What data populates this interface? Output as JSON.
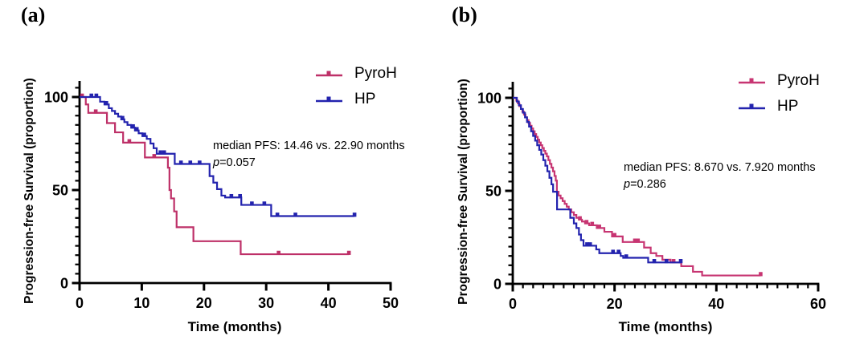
{
  "figure": {
    "background": "#ffffff"
  },
  "chart_data": [
    {
      "type": "line",
      "subtype": "kaplan-meier-step",
      "panel_label": "(a)",
      "xlabel": "Time (months)",
      "ylabel": "Progression-free Survival (proportion)",
      "xlim": [
        0,
        50
      ],
      "ylim": [
        0,
        108
      ],
      "xticks": [
        0,
        10,
        20,
        30,
        40,
        50
      ],
      "yticks": [
        0,
        50,
        100
      ],
      "x_minor_step": null,
      "y_minor_step": 5,
      "grid": false,
      "legend_position": "top-right",
      "annotation": {
        "line1": "median PFS: 14.46 vs. 22.90 months",
        "p_italic": "p",
        "p_rest": "=0.057"
      },
      "series": [
        {
          "name": "PyroH",
          "color": "#BE3068",
          "median_pfs_months": 14.46,
          "steps": [
            [
              0,
              100
            ],
            [
              1.0,
              96
            ],
            [
              1.4,
              91.5
            ],
            [
              4.4,
              86
            ],
            [
              5.7,
              81
            ],
            [
              7.0,
              75.5
            ],
            [
              10.5,
              67.5
            ],
            [
              14.2,
              62
            ],
            [
              14.45,
              50
            ],
            [
              14.7,
              45.5
            ],
            [
              15.2,
              38.5
            ],
            [
              15.6,
              30
            ],
            [
              18.3,
              22.5
            ],
            [
              25.9,
              15.5
            ]
          ],
          "end": 43.3,
          "censors": [
            [
              0.4,
              100
            ],
            [
              2.6,
              91.5
            ],
            [
              8.0,
              75.5
            ],
            [
              12.0,
              67.5
            ],
            [
              32.0,
              15.5
            ],
            [
              43.3,
              15.5
            ]
          ]
        },
        {
          "name": "HP",
          "color": "#2323AE",
          "median_pfs_months": 22.9,
          "steps": [
            [
              0,
              100
            ],
            [
              3.3,
              97.5
            ],
            [
              4.0,
              96
            ],
            [
              4.7,
              94
            ],
            [
              5.2,
              92.5
            ],
            [
              5.7,
              91
            ],
            [
              6.2,
              89.5
            ],
            [
              6.7,
              88
            ],
            [
              7.2,
              86.5
            ],
            [
              7.7,
              85
            ],
            [
              8.3,
              83.5
            ],
            [
              8.9,
              82
            ],
            [
              9.5,
              80.5
            ],
            [
              10.1,
              79
            ],
            [
              10.8,
              77.5
            ],
            [
              11.4,
              75
            ],
            [
              11.9,
              72.5
            ],
            [
              12.4,
              69.5
            ],
            [
              15.3,
              64
            ],
            [
              20.9,
              57.5
            ],
            [
              21.5,
              54
            ],
            [
              22.1,
              50.5
            ],
            [
              22.8,
              47
            ],
            [
              23.4,
              46
            ],
            [
              26.0,
              42
            ],
            [
              30.8,
              36
            ]
          ],
          "end": 44.2,
          "censors": [
            [
              1.9,
              100
            ],
            [
              2.7,
              100
            ],
            [
              4.3,
              96
            ],
            [
              6.9,
              88
            ],
            [
              8.6,
              83.5
            ],
            [
              9.2,
              82
            ],
            [
              10.4,
              79
            ],
            [
              13.0,
              69.5
            ],
            [
              13.6,
              69.5
            ],
            [
              16.3,
              64
            ],
            [
              17.8,
              64
            ],
            [
              19.3,
              64
            ],
            [
              24.4,
              46
            ],
            [
              25.8,
              46
            ],
            [
              27.7,
              42
            ],
            [
              29.7,
              42
            ],
            [
              31.8,
              36
            ],
            [
              34.7,
              36
            ],
            [
              44.2,
              36
            ]
          ]
        }
      ]
    },
    {
      "type": "line",
      "subtype": "kaplan-meier-step",
      "panel_label": "(b)",
      "xlabel": "Time (months)",
      "ylabel": "Progression-free Survival (proportion)",
      "xlim": [
        0,
        60
      ],
      "ylim": [
        0,
        108
      ],
      "xticks": [
        0,
        20,
        40,
        60
      ],
      "yticks": [
        0,
        50,
        100
      ],
      "x_minor_step": 2,
      "y_minor_step": 5,
      "grid": false,
      "legend_position": "top-right",
      "annotation": {
        "line1": "median PFS: 8.670 vs. 7.920 months",
        "p_italic": "p",
        "p_rest": "=0.286"
      },
      "series": [
        {
          "name": "PyroH",
          "color": "#C73572",
          "median_pfs_months": 8.67,
          "steps": [
            [
              0,
              100
            ],
            [
              0.7,
              98.5
            ],
            [
              1.0,
              97
            ],
            [
              1.3,
              95.5
            ],
            [
              1.6,
              94
            ],
            [
              1.9,
              92.5
            ],
            [
              2.2,
              91
            ],
            [
              2.5,
              89.5
            ],
            [
              2.8,
              88
            ],
            [
              3.1,
              86.5
            ],
            [
              3.4,
              85
            ],
            [
              3.7,
              83.5
            ],
            [
              4.0,
              82
            ],
            [
              4.3,
              80.5
            ],
            [
              4.6,
              79
            ],
            [
              4.9,
              77.5
            ],
            [
              5.2,
              76
            ],
            [
              5.5,
              74.5
            ],
            [
              5.8,
              73
            ],
            [
              6.1,
              71.5
            ],
            [
              6.4,
              70
            ],
            [
              6.7,
              68.5
            ],
            [
              7.0,
              66.5
            ],
            [
              7.3,
              64.5
            ],
            [
              7.6,
              62.5
            ],
            [
              7.9,
              60.5
            ],
            [
              8.2,
              58
            ],
            [
              8.45,
              55.5
            ],
            [
              8.67,
              49.5
            ],
            [
              9.0,
              47.5
            ],
            [
              9.4,
              46
            ],
            [
              9.8,
              44.5
            ],
            [
              10.2,
              43
            ],
            [
              10.6,
              41.5
            ],
            [
              11.0,
              40
            ],
            [
              11.5,
              38.5
            ],
            [
              12.0,
              37
            ],
            [
              12.5,
              35.5
            ],
            [
              13.0,
              34.5
            ],
            [
              13.6,
              33.5
            ],
            [
              14.2,
              32.5
            ],
            [
              15.0,
              31.5
            ],
            [
              16.5,
              30
            ],
            [
              18.0,
              28
            ],
            [
              19.5,
              25.5
            ],
            [
              21.6,
              22.5
            ],
            [
              25.8,
              19.5
            ],
            [
              27.1,
              16.5
            ],
            [
              28.2,
              15
            ],
            [
              29.4,
              13
            ],
            [
              31.0,
              11.5
            ],
            [
              33.1,
              9.5
            ],
            [
              35.4,
              6.5
            ],
            [
              37.2,
              4.5
            ]
          ],
          "end": 48.7,
          "censors": [
            [
              13.2,
              34.5
            ],
            [
              14.5,
              32.5
            ],
            [
              15.6,
              31.5
            ],
            [
              17.0,
              30
            ],
            [
              20.0,
              25.5
            ],
            [
              24.0,
              22.5
            ],
            [
              24.6,
              22.5
            ],
            [
              31.6,
              11.5
            ],
            [
              48.7,
              4.5
            ]
          ]
        },
        {
          "name": "HP",
          "color": "#2323AE",
          "median_pfs_months": 7.92,
          "steps": [
            [
              0,
              100
            ],
            [
              0.8,
              98
            ],
            [
              1.2,
              96
            ],
            [
              1.6,
              94
            ],
            [
              2.0,
              92
            ],
            [
              2.4,
              89.5
            ],
            [
              2.8,
              87
            ],
            [
              3.2,
              84.5
            ],
            [
              3.6,
              82
            ],
            [
              4.0,
              79.5
            ],
            [
              4.4,
              77
            ],
            [
              4.8,
              74.5
            ],
            [
              5.2,
              72
            ],
            [
              5.6,
              69.5
            ],
            [
              6.0,
              66.5
            ],
            [
              6.4,
              63.5
            ],
            [
              6.8,
              60.5
            ],
            [
              7.2,
              57
            ],
            [
              7.6,
              53.5
            ],
            [
              7.92,
              49.5
            ],
            [
              8.7,
              40
            ],
            [
              11.3,
              35.5
            ],
            [
              12.0,
              32.5
            ],
            [
              12.5,
              30
            ],
            [
              13.0,
              26.5
            ],
            [
              13.4,
              23.5
            ],
            [
              13.9,
              20.5
            ],
            [
              16.4,
              18.5
            ],
            [
              17.0,
              16.5
            ],
            [
              21.2,
              15
            ],
            [
              21.7,
              14
            ],
            [
              26.6,
              11.5
            ]
          ],
          "end": 33.0,
          "censors": [
            [
              14.6,
              20.5
            ],
            [
              15.2,
              20.5
            ],
            [
              19.7,
              16.5
            ],
            [
              20.8,
              16.5
            ],
            [
              22.3,
              14
            ],
            [
              27.8,
              11.5
            ],
            [
              30.2,
              11.5
            ],
            [
              33.0,
              11.5
            ]
          ]
        }
      ]
    }
  ]
}
